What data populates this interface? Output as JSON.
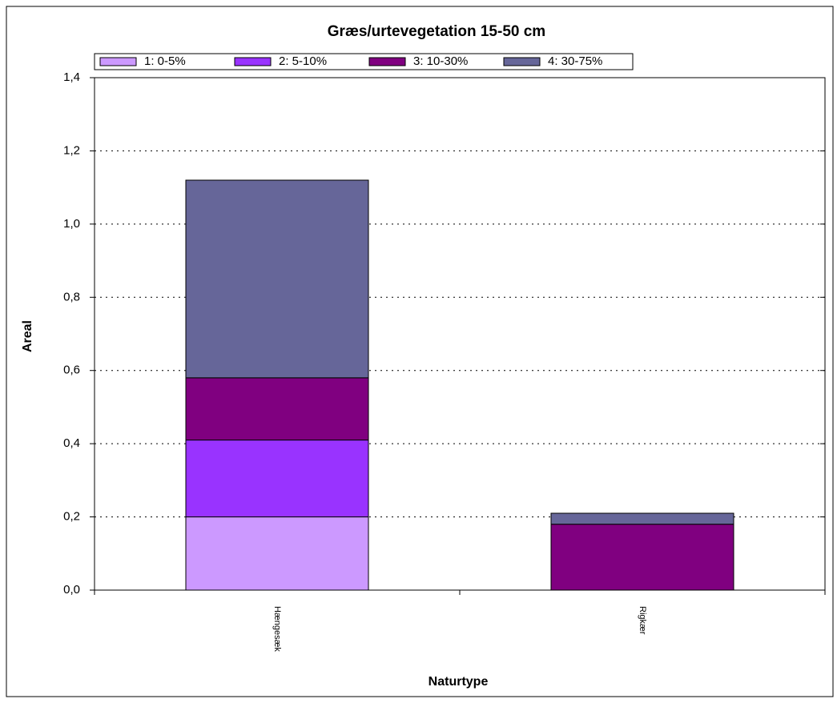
{
  "chart_data": {
    "type": "stacked_bar",
    "title": "Græs/urtevegetation 15-50 cm",
    "x_label": "Naturtype",
    "y_label": "Areal",
    "categories": [
      "Hængesæk",
      "Rigkær"
    ],
    "series": [
      {
        "name": "1: 0-5%",
        "color": "#cc99ff",
        "values": [
          0.2,
          0
        ]
      },
      {
        "name": "2: 5-10%",
        "color": "#9933ff",
        "values": [
          0.21,
          0
        ]
      },
      {
        "name": "3: 10-30%",
        "color": "#800080",
        "values": [
          0.17,
          0.18
        ]
      },
      {
        "name": "4: 30-75%",
        "color": "#666699",
        "values": [
          0.54,
          0.03
        ]
      }
    ],
    "ylim": [
      0,
      1.4
    ],
    "yticks": [
      {
        "value": 0,
        "label": "0,0"
      },
      {
        "value": 0.2,
        "label": "0,2"
      },
      {
        "value": 0.4,
        "label": "0,4"
      },
      {
        "value": 0.6,
        "label": "0,6"
      },
      {
        "value": 0.8,
        "label": "0,8"
      },
      {
        "value": 1.0,
        "label": "1,0"
      },
      {
        "value": 1.2,
        "label": "1,2"
      },
      {
        "value": 1.4,
        "label": "1,4"
      }
    ],
    "grid": true,
    "legend": "top"
  }
}
